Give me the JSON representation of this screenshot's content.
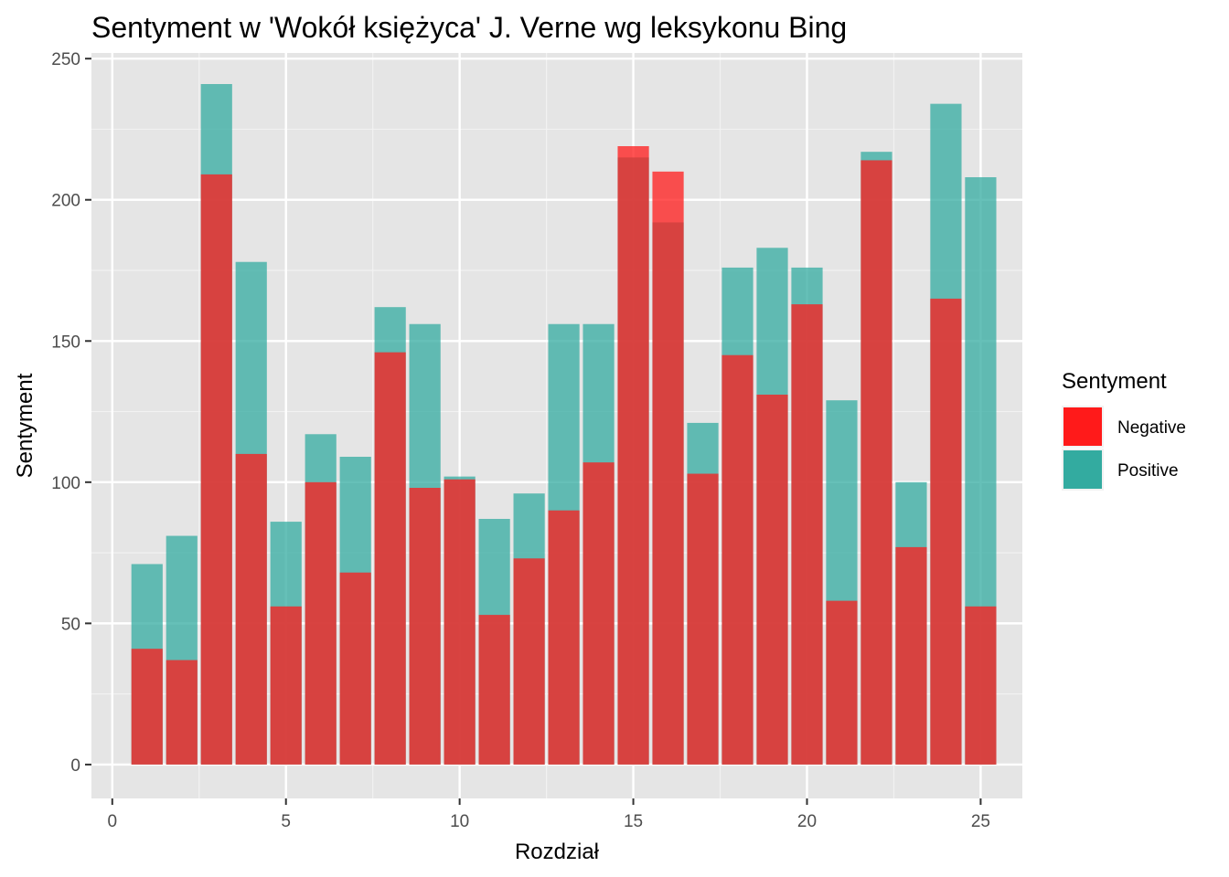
{
  "chart_data": {
    "type": "bar",
    "title": "Sentyment w 'Wokół księżyca' J. Verne wg leksykonu Bing",
    "xlabel": "Rozdział",
    "ylabel": "Sentyment",
    "xlim": [
      -0.6,
      26.2
    ],
    "ylim": [
      -12,
      252
    ],
    "x_ticks": [
      0,
      5,
      10,
      15,
      20,
      25
    ],
    "y_ticks": [
      0,
      50,
      100,
      150,
      200,
      250
    ],
    "grid": true,
    "overlay": "identity (bars overlapping, semi-transparent)",
    "legend": {
      "title": "Sentyment",
      "position": "right",
      "entries": [
        "Negative",
        "Positive"
      ]
    },
    "x": [
      1,
      2,
      3,
      4,
      5,
      6,
      7,
      8,
      9,
      10,
      11,
      12,
      13,
      14,
      15,
      16,
      17,
      18,
      19,
      20,
      21,
      22,
      23,
      24,
      25
    ],
    "series": [
      {
        "name": "Negative",
        "color": "#ff1a1a",
        "values": [
          41,
          37,
          209,
          110,
          56,
          100,
          68,
          146,
          98,
          101,
          53,
          73,
          90,
          107,
          219,
          210,
          103,
          145,
          131,
          163,
          58,
          214,
          77,
          165,
          56
        ]
      },
      {
        "name": "Positive",
        "color": "#33aba0",
        "values": [
          71,
          81,
          241,
          178,
          86,
          117,
          109,
          162,
          156,
          102,
          87,
          96,
          156,
          156,
          215,
          192,
          121,
          176,
          183,
          176,
          129,
          217,
          100,
          234,
          208
        ]
      }
    ]
  }
}
